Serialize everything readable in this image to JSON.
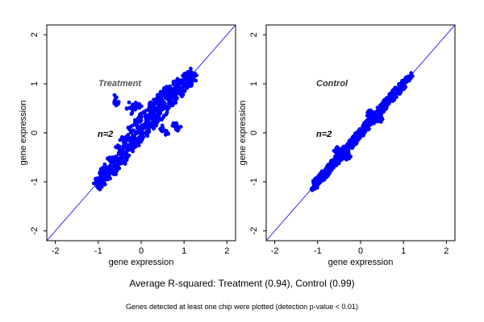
{
  "chart_data": [
    {
      "type": "scatter",
      "title": "Treatment",
      "annotation": "n=2",
      "xlabel": "gene expression",
      "ylabel": "gene expression",
      "xlim": [
        -2.2,
        2.2
      ],
      "ylim": [
        -2.2,
        2.2
      ],
      "xticks": [
        -2,
        -1,
        0,
        1,
        2
      ],
      "yticks": [
        -2,
        -1,
        0,
        1,
        2
      ],
      "reference_line": "y = x",
      "grid": false,
      "r_squared": 0.94,
      "series": [
        {
          "color": "#0000ff",
          "points": [
            [
              -1.0,
              -1.05
            ],
            [
              -0.95,
              -0.98
            ],
            [
              -0.9,
              -0.85
            ],
            [
              -0.85,
              -0.95
            ],
            [
              -0.8,
              -0.7
            ],
            [
              -0.75,
              -0.82
            ],
            [
              -0.7,
              -0.6
            ],
            [
              -0.65,
              -0.75
            ],
            [
              -0.6,
              -0.5
            ],
            [
              -0.55,
              -0.65
            ],
            [
              -0.5,
              -0.35
            ],
            [
              -0.45,
              -0.55
            ],
            [
              -0.4,
              -0.2
            ],
            [
              -0.35,
              -0.45
            ],
            [
              -0.3,
              -0.1
            ],
            [
              -0.25,
              -0.3
            ],
            [
              -0.2,
              0.05
            ],
            [
              -0.15,
              -0.2
            ],
            [
              -0.1,
              0.15
            ],
            [
              -0.05,
              -0.1
            ],
            [
              0.0,
              0.25
            ],
            [
              0.05,
              0.0
            ],
            [
              0.1,
              0.35
            ],
            [
              0.15,
              0.1
            ],
            [
              0.2,
              0.45
            ],
            [
              0.25,
              0.2
            ],
            [
              0.3,
              0.55
            ],
            [
              0.35,
              0.3
            ],
            [
              0.4,
              0.65
            ],
            [
              0.45,
              0.4
            ],
            [
              0.5,
              0.75
            ],
            [
              0.55,
              0.5
            ],
            [
              0.6,
              0.85
            ],
            [
              0.65,
              0.6
            ],
            [
              0.7,
              0.9
            ],
            [
              0.75,
              0.7
            ],
            [
              0.8,
              0.95
            ],
            [
              0.85,
              0.8
            ],
            [
              0.9,
              1.0
            ],
            [
              0.95,
              0.9
            ],
            [
              1.0,
              1.05
            ],
            [
              1.05,
              1.0
            ],
            [
              1.1,
              1.15
            ],
            [
              1.15,
              1.1
            ],
            [
              1.2,
              1.2
            ],
            [
              -0.6,
              0.65
            ],
            [
              -0.1,
              0.55
            ],
            [
              0.55,
              0.05
            ],
            [
              0.8,
              0.15
            ],
            [
              -0.25,
              0.5
            ]
          ]
        }
      ]
    },
    {
      "type": "scatter",
      "title": "Control",
      "annotation": "n=2",
      "xlabel": "gene expression",
      "ylabel": "gene expression",
      "xlim": [
        -2.2,
        2.2
      ],
      "ylim": [
        -2.2,
        2.2
      ],
      "xticks": [
        -2,
        -1,
        0,
        1,
        2
      ],
      "yticks": [
        -2,
        -1,
        0,
        1,
        2
      ],
      "reference_line": "y = x",
      "grid": false,
      "r_squared": 0.99,
      "series": [
        {
          "color": "#0000ff",
          "points": [
            [
              -1.1,
              -1.1
            ],
            [
              -1.05,
              -0.98
            ],
            [
              -1.0,
              -1.05
            ],
            [
              -0.95,
              -0.9
            ],
            [
              -0.9,
              -0.95
            ],
            [
              -0.85,
              -0.8
            ],
            [
              -0.8,
              -0.85
            ],
            [
              -0.75,
              -0.7
            ],
            [
              -0.7,
              -0.75
            ],
            [
              -0.65,
              -0.6
            ],
            [
              -0.6,
              -0.65
            ],
            [
              -0.55,
              -0.5
            ],
            [
              -0.5,
              -0.55
            ],
            [
              -0.45,
              -0.4
            ],
            [
              -0.4,
              -0.45
            ],
            [
              -0.35,
              -0.3
            ],
            [
              -0.3,
              -0.35
            ],
            [
              -0.25,
              -0.2
            ],
            [
              -0.2,
              -0.25
            ],
            [
              -0.15,
              -0.1
            ],
            [
              -0.1,
              -0.15
            ],
            [
              -0.05,
              0.0
            ],
            [
              0.0,
              -0.05
            ],
            [
              0.05,
              0.1
            ],
            [
              0.1,
              0.05
            ],
            [
              0.15,
              0.2
            ],
            [
              0.2,
              0.15
            ],
            [
              0.25,
              0.3
            ],
            [
              0.3,
              0.25
            ],
            [
              0.35,
              0.4
            ],
            [
              0.4,
              0.35
            ],
            [
              0.45,
              0.5
            ],
            [
              0.5,
              0.45
            ],
            [
              0.55,
              0.6
            ],
            [
              0.6,
              0.55
            ],
            [
              0.65,
              0.7
            ],
            [
              0.7,
              0.65
            ],
            [
              0.75,
              0.8
            ],
            [
              0.8,
              0.75
            ],
            [
              0.85,
              0.9
            ],
            [
              0.9,
              0.85
            ],
            [
              0.95,
              1.0
            ],
            [
              1.0,
              0.95
            ],
            [
              1.05,
              1.08
            ],
            [
              1.1,
              1.1
            ],
            [
              1.15,
              1.15
            ],
            [
              -0.55,
              -0.35
            ],
            [
              -0.3,
              -0.5
            ],
            [
              0.45,
              0.25
            ],
            [
              0.2,
              0.4
            ]
          ]
        }
      ]
    }
  ],
  "captions": {
    "main": "Average R-squared: Treatment (0.94), Control (0.99)",
    "note": "Genes detected at least one chip were plotted (detection p-value < 0.01)"
  },
  "colors": {
    "points": "#0000ff",
    "reference_line": "#0000ff",
    "treatment_title": "#555555",
    "control_title": "#333333",
    "axes": "#000000"
  }
}
